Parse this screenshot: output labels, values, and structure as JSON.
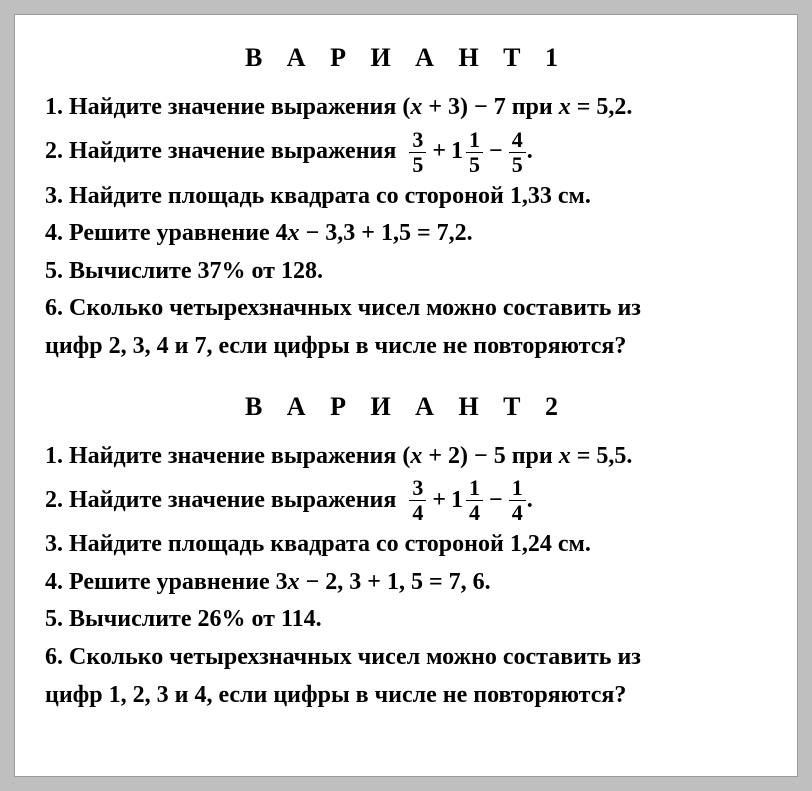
{
  "colors": {
    "page_bg": "#ffffff",
    "outer_bg": "#bfbfbf",
    "text": "#000000"
  },
  "typography": {
    "family": "Times New Roman",
    "title_size": 26,
    "body_size": 24,
    "title_letter_spacing": 9
  },
  "variant1": {
    "title": "В А Р И А Н Т   1",
    "p1_num": "1.",
    "p1_text": " Найдите значение выражения (",
    "p1_var": "x",
    "p1_rest": " + 3) − 7 при ",
    "p1_var2": "x",
    "p1_eq": " = 5,2.",
    "p2_num": "2.",
    "p2_text": " Найдите значение выражения  ",
    "p2_f1n": "3",
    "p2_f1d": "5",
    "p2_op1": "+",
    "p2_mw": "1",
    "p2_f2n": "1",
    "p2_f2d": "5",
    "p2_op2": "−",
    "p2_f3n": "4",
    "p2_f3d": "5",
    "p2_end": ".",
    "p3_num": "3.",
    "p3_text": " Найдите площадь квадрата со стороной 1,33 см.",
    "p4_num": "4.",
    "p4_text": " Решите уравнение 4",
    "p4_var": "x",
    "p4_rest": " − 3,3 + 1,5 = 7,2.",
    "p5_num": "5.",
    "p5_text": " Вычислите 37% от 128.",
    "p6_num": "6.",
    "p6_text": " Сколько четырехзначных чисел можно составить из",
    "p6_line2": "цифр 2, 3, 4 и 7, если цифры в числе не повторяются?"
  },
  "variant2": {
    "title": "В А Р И А Н Т   2",
    "p1_num": "1.",
    "p1_text": " Найдите значение выражения (",
    "p1_var": "x",
    "p1_rest": " + 2) − 5 при ",
    "p1_var2": "x",
    "p1_eq": " = 5,5.",
    "p2_num": "2.",
    "p2_text": " Найдите значение выражения  ",
    "p2_f1n": "3",
    "p2_f1d": "4",
    "p2_op1": "+",
    "p2_mw": "1",
    "p2_f2n": "1",
    "p2_f2d": "4",
    "p2_op2": "−",
    "p2_f3n": "1",
    "p2_f3d": "4",
    "p2_end": ".",
    "p3_num": "3.",
    "p3_text": " Найдите площадь квадрата со стороной 1,24 см.",
    "p4_num": "4.",
    "p4_text": " Решите уравнение  3",
    "p4_var": "x",
    "p4_rest": " − 2, 3 + 1, 5 = 7, 6.",
    "p5_num": "5.",
    "p5_text": " Вычислите 26% от 114.",
    "p6_num": "6.",
    "p6_text": " Сколько четырехзначных чисел можно составить из",
    "p6_line2": "цифр  1, 2, 3 и 4, если цифры в числе не повторяются?"
  }
}
